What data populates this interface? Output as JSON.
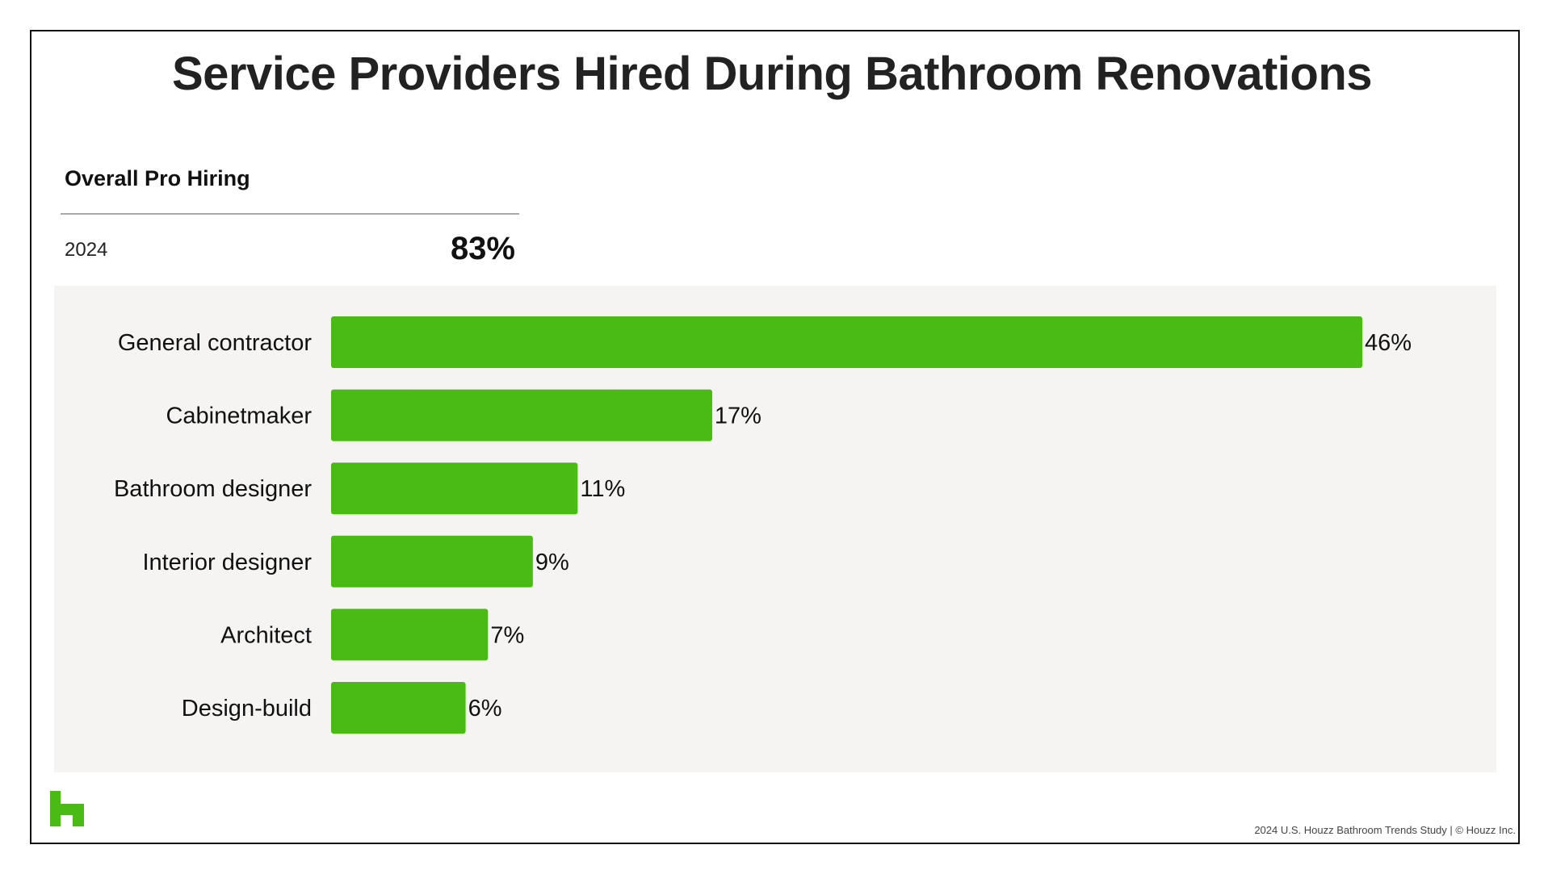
{
  "title": "Service Providers Hired During Bathroom Renovations",
  "summary": {
    "heading": "Overall Pro Hiring",
    "year": "2024",
    "value": "83%"
  },
  "colors": {
    "bar": "#4aba14",
    "panel": "#f5f4f2",
    "logo": "#4aba14"
  },
  "logo_icon": "houzz-logo-icon",
  "footer": "2024 U.S. Houzz Bathroom Trends Study  |  © Houzz Inc.",
  "chart_data": {
    "type": "bar",
    "orientation": "horizontal",
    "categories": [
      "General contractor",
      "Cabinetmaker",
      "Bathroom designer",
      "Interior designer",
      "Architect",
      "Design-build"
    ],
    "values": [
      46,
      17,
      11,
      9,
      7,
      6
    ],
    "data_labels": [
      "46%",
      "17%",
      "11%",
      "9%",
      "7%",
      "6%"
    ],
    "unit": "%",
    "xlim": [
      0,
      46
    ],
    "grid": false,
    "legend": "none"
  }
}
